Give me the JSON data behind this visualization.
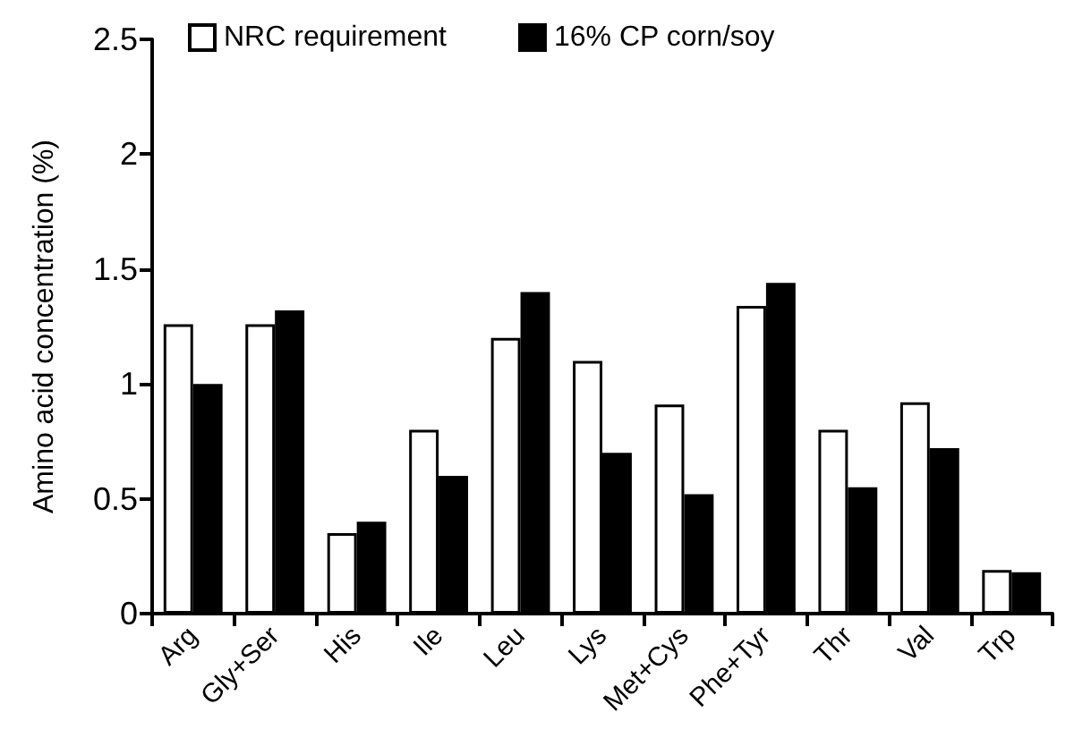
{
  "chart_data": {
    "type": "bar",
    "ylabel": "Amino acid concentration (%)",
    "categories": [
      "Arg",
      "Gly+Ser",
      "His",
      "Ile",
      "Leu",
      "Lys",
      "Met+Cys",
      "Phe+Tyr",
      "Thr",
      "Val",
      "Trp"
    ],
    "series": [
      {
        "name": "NRC requirement",
        "color": "#ffffff",
        "values": [
          1.26,
          1.26,
          0.35,
          0.8,
          1.2,
          1.1,
          0.91,
          1.34,
          0.8,
          0.92,
          0.19
        ]
      },
      {
        "name": "16% CP corn/soy",
        "color": "#000000",
        "values": [
          1.0,
          1.32,
          0.4,
          0.6,
          1.4,
          0.7,
          0.52,
          1.44,
          0.55,
          0.72,
          0.18
        ]
      }
    ],
    "ylim": [
      0,
      2.5
    ],
    "yticks": [
      0,
      0.5,
      1,
      1.5,
      2,
      2.5
    ],
    "grid": false,
    "legend": "top"
  }
}
